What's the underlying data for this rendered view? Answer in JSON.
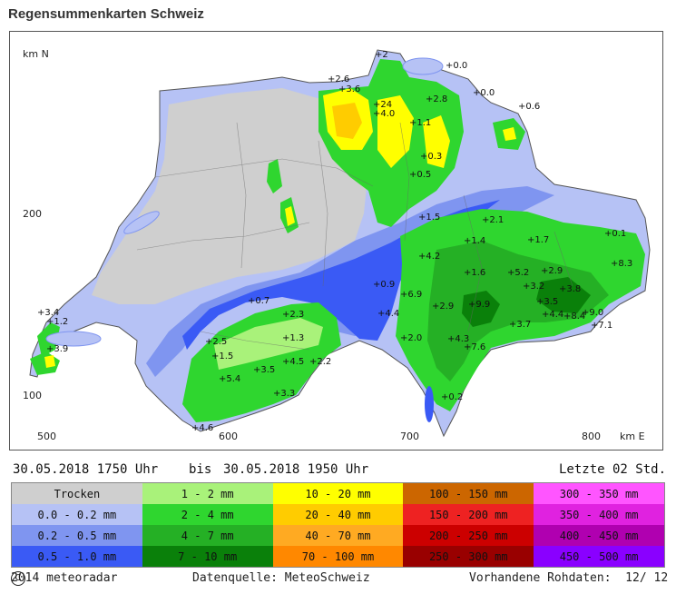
{
  "title": "Regensummenkarten Schweiz",
  "map": {
    "axis": {
      "north_label": "km N",
      "east_label": "km E",
      "y_ticks": [
        "200",
        "100"
      ],
      "x_ticks": [
        "500",
        "600",
        "700",
        "800"
      ]
    },
    "rain_labels": [
      "+2",
      "+0.0",
      "+2.6",
      "+3.6",
      "+24",
      "+4.0",
      "+2.8",
      "+1.1",
      "+0.0",
      "+0.3",
      "+0.5",
      "+0.6",
      "+1.5",
      "+2.1",
      "+1.4",
      "+1.7",
      "+4.2",
      "+1.6",
      "+5.2",
      "+2.9",
      "+8.3",
      "+3.8",
      "+3.2",
      "+3.5",
      "+4.4",
      "+8.4",
      "+9.0",
      "+7.1",
      "+3.7",
      "+2.9",
      "+9.9",
      "+6.9",
      "+0.9",
      "+0.7",
      "+2.3",
      "+2.5",
      "+1.3",
      "+1.5",
      "+4.5",
      "+2.2",
      "+5.4",
      "+3.5",
      "+3.3",
      "+4.3",
      "+7.6",
      "+2.0",
      "+4.4",
      "+3.4",
      "+1.2",
      "+3.9",
      "+0.2",
      "+4.6",
      "+0.1"
    ],
    "colors": {
      "dry_gray": "#c8c8c8",
      "light_blue": "#a8b8f0",
      "mid_blue": "#7890f0",
      "dark_blue": "#3050f0",
      "light_green": "#a0f070",
      "green": "#40d040",
      "mid_green": "#20b020",
      "dark_green": "#008000",
      "yellow": "#ffff00",
      "orange_yellow": "#ffc000"
    }
  },
  "time": {
    "from": "30.05.2018 1750 Uhr",
    "separator": "bis",
    "to": "30.05.2018 1950 Uhr",
    "period": "Letzte 02 Std."
  },
  "legend": [
    {
      "label": "Trocken",
      "color": "#cfcfcf"
    },
    {
      "label": "1 - 2 mm",
      "color": "#a9f27a"
    },
    {
      "label": "10 - 20 mm",
      "color": "#ffff00"
    },
    {
      "label": "100 - 150 mm",
      "color": "#cc6600"
    },
    {
      "label": "300 - 350 mm",
      "color": "#ff55ff"
    },
    {
      "label": "0.0 - 0.2 mm",
      "color": "#b6c2f5"
    },
    {
      "label": "2 - 4 mm",
      "color": "#2fd62f"
    },
    {
      "label": "20 - 40 mm",
      "color": "#ffcc00"
    },
    {
      "label": "150 - 200 mm",
      "color": "#ee2222"
    },
    {
      "label": "350 - 400 mm",
      "color": "#e022e0"
    },
    {
      "label": "0.2 - 0.5 mm",
      "color": "#7f95f0"
    },
    {
      "label": "4 - 7 mm",
      "color": "#25b025"
    },
    {
      "label": "40 - 70 mm",
      "color": "#ffaa22"
    },
    {
      "label": "200 - 250 mm",
      "color": "#cc0000"
    },
    {
      "label": "400 - 450 mm",
      "color": "#b000b0"
    },
    {
      "label": "0.5 - 1.0 mm",
      "color": "#3a5af5"
    },
    {
      "label": "7 - 10 mm",
      "color": "#0a800a"
    },
    {
      "label": "70 - 100 mm",
      "color": "#ff8800"
    },
    {
      "label": "250 - 300 mm",
      "color": "#990000"
    },
    {
      "label": "450 - 500 mm",
      "color": "#8a00ff"
    }
  ],
  "footer": {
    "copyright": "2014 meteoradar",
    "source": "Datenquelle: MeteoSchweiz",
    "data_available": "Vorhandene Rohdaten:  12/ 12"
  }
}
